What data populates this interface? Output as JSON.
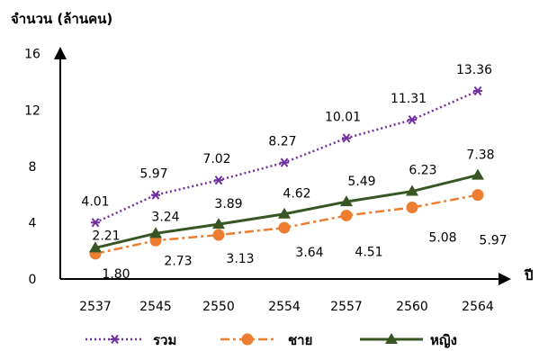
{
  "chart_data": {
    "type": "line",
    "ylabel": "จำนวน (ล้านคน)",
    "xlabel": "ปี",
    "categories": [
      "2537",
      "2545",
      "2550",
      "2554",
      "2557",
      "2560",
      "2564"
    ],
    "ylim": [
      0,
      16
    ],
    "yticks": [
      "0",
      "4",
      "8",
      "12",
      "16"
    ],
    "grid": false,
    "legend_position": "bottom",
    "series": [
      {
        "name": "รวม",
        "values": [
          4.01,
          5.97,
          7.02,
          8.27,
          10.01,
          11.31,
          13.36
        ],
        "labels": [
          "4.01",
          "5.97",
          "7.02",
          "8.27",
          "10.01",
          "11.31",
          "13.36"
        ],
        "color": "#7030A0",
        "line_style": "dotted",
        "marker": "star"
      },
      {
        "name": "ชาย",
        "values": [
          1.8,
          2.73,
          3.13,
          3.64,
          4.51,
          5.08,
          5.97
        ],
        "labels": [
          "1.80",
          "2.73",
          "3.13",
          "3.64",
          "4.51",
          "5.08",
          "5.97"
        ],
        "color": "#ED7D31",
        "line_style": "dash-dot",
        "marker": "circle"
      },
      {
        "name": "หญิง",
        "values": [
          2.21,
          3.24,
          3.89,
          4.62,
          5.49,
          6.23,
          7.38
        ],
        "labels": [
          "2.21",
          "3.24",
          "3.89",
          "4.62",
          "5.49",
          "6.23",
          "7.38"
        ],
        "color": "#375623",
        "line_style": "solid",
        "marker": "triangle"
      }
    ]
  }
}
